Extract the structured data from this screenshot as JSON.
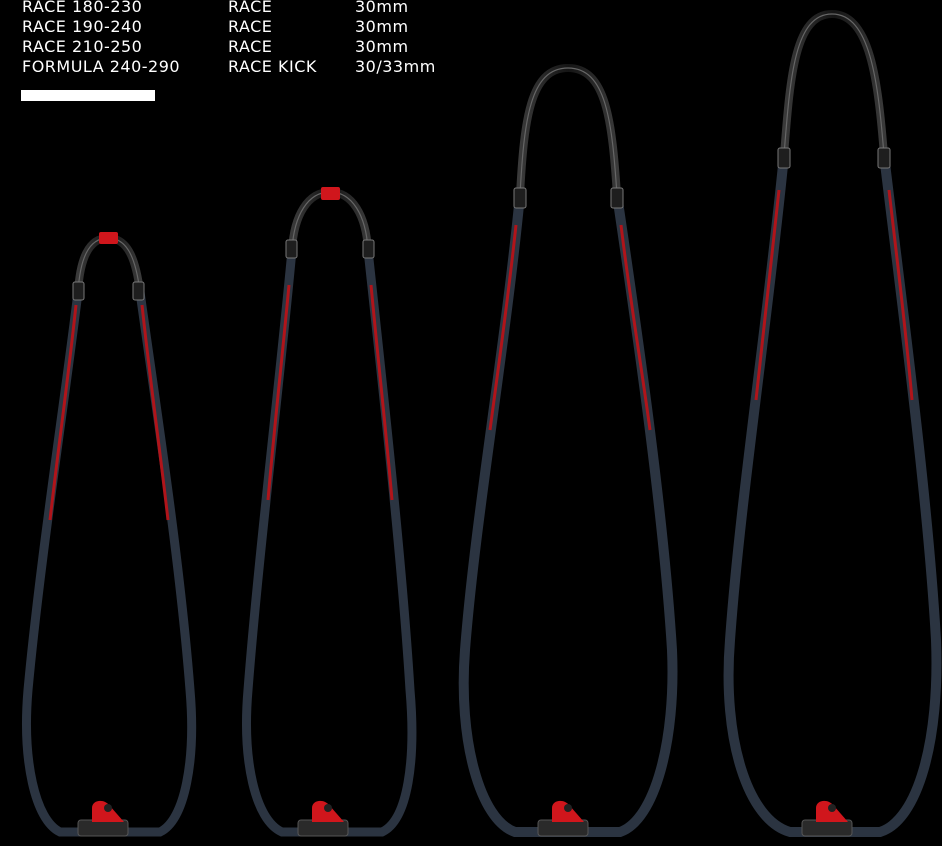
{
  "specs": {
    "rows": [
      {
        "model": "RACE 180-230",
        "type": "RACE",
        "diameter": "30mm"
      },
      {
        "model": "RACE 190-240",
        "type": "RACE",
        "diameter": "30mm"
      },
      {
        "model": "RACE 210-250",
        "type": "RACE",
        "diameter": "30mm"
      },
      {
        "model": "FORMULA 240-290",
        "type": "RACE KICK",
        "diameter": "30/33mm"
      }
    ]
  },
  "colors": {
    "background": "#000000",
    "tube": "#2b3441",
    "tube_edge": "#4a5563",
    "accent_red": "#d0161c",
    "head": "#1a1a1a",
    "head_edge": "#5a5a5a"
  },
  "booms": [
    {
      "name": "boom-1",
      "head_clamp": true
    },
    {
      "name": "boom-2",
      "head_clamp": true
    },
    {
      "name": "boom-3",
      "head_clamp": false
    },
    {
      "name": "boom-4",
      "head_clamp": false
    }
  ]
}
